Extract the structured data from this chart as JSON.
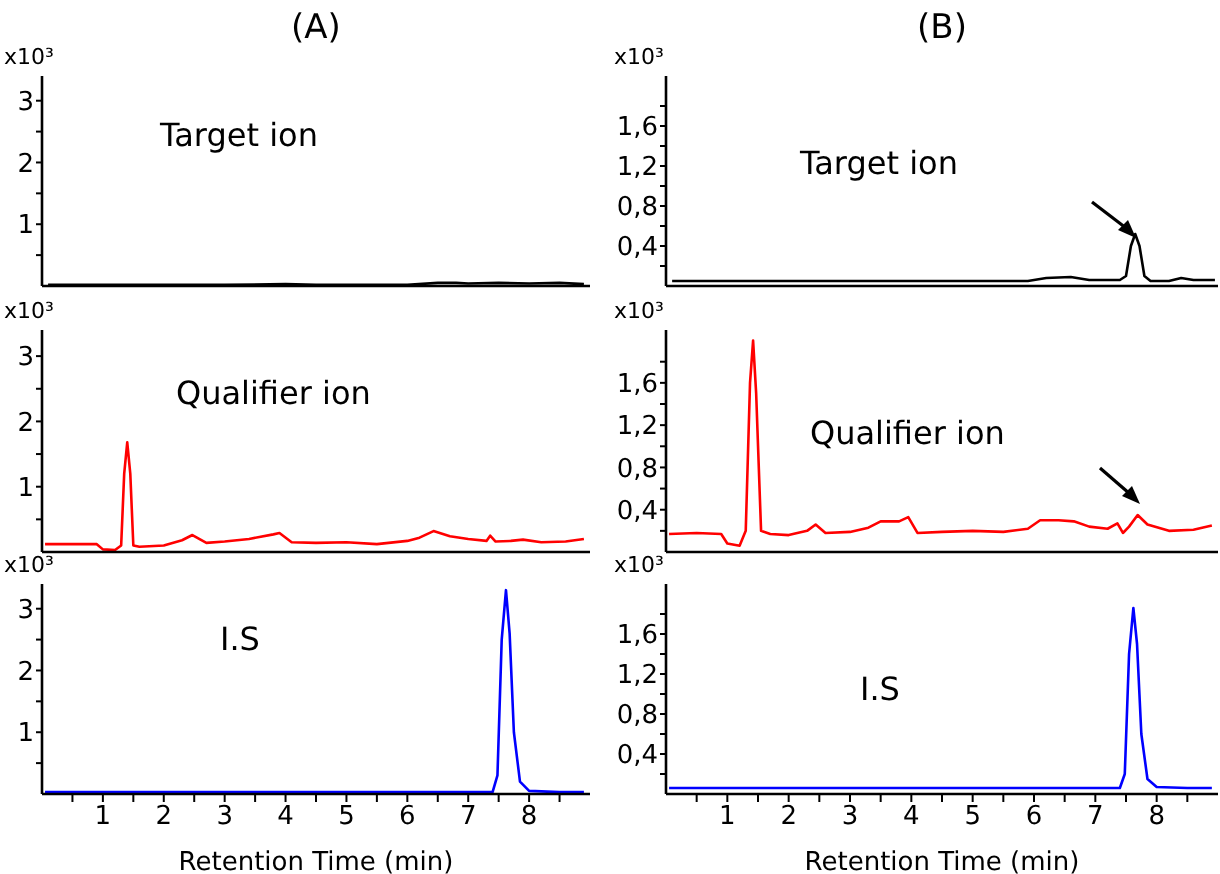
{
  "chart_data": [
    {
      "type": "line",
      "title": "(A)",
      "ylabel": "x10³",
      "annotations": [
        "Target ion"
      ],
      "xlim": [
        0,
        9
      ],
      "ylim": [
        0,
        3.4
      ],
      "yticks": [
        {
          "value": 0.5,
          "label": null
        },
        1,
        {
          "value": 1.5,
          "label": null
        },
        2,
        {
          "value": 2.5,
          "label": null
        },
        3
      ],
      "tick_labels": "y",
      "grid": false,
      "legend": false,
      "marker": "none",
      "line_style": "solid",
      "series": [
        {
          "color": "#000000",
          "x": [
            0.1,
            1,
            2,
            3,
            4,
            4.5,
            5,
            6,
            6.5,
            6.8,
            7,
            7.5,
            8,
            8.5,
            8.9
          ],
          "values": [
            0.02,
            0.02,
            0.02,
            0.02,
            0.03,
            0.02,
            0.02,
            0.02,
            0.05,
            0.05,
            0.04,
            0.05,
            0.04,
            0.05,
            0.03
          ]
        }
      ]
    },
    {
      "type": "line",
      "title": "(B)",
      "ylabel": "x10³",
      "annotations": [
        "Target ion"
      ],
      "xlim": [
        0,
        9
      ],
      "ylim": [
        0,
        2.1
      ],
      "yticks": [
        {
          "value": 0.2,
          "label": null
        },
        {
          "value": 0.4,
          "label": "0,4"
        },
        {
          "value": 0.6,
          "label": null
        },
        {
          "value": 0.8,
          "label": "0,8"
        },
        {
          "value": 1.0,
          "label": null
        },
        {
          "value": 1.2,
          "label": "1,2"
        },
        {
          "value": 1.4,
          "label": null
        },
        {
          "value": 1.6,
          "label": "1,6"
        },
        {
          "value": 1.8,
          "label": null
        }
      ],
      "tick_labels": "y",
      "grid": false,
      "legend": false,
      "marker": "none",
      "line_style": "solid",
      "series": [
        {
          "color": "#000000",
          "x": [
            0.1,
            1,
            2,
            3,
            4,
            5,
            5.9,
            6.2,
            6.6,
            6.9,
            7.2,
            7.4,
            7.5,
            7.58,
            7.65,
            7.72,
            7.8,
            7.9,
            8.2,
            8.4,
            8.6,
            8.95
          ],
          "values": [
            0.05,
            0.05,
            0.05,
            0.05,
            0.05,
            0.05,
            0.05,
            0.08,
            0.09,
            0.06,
            0.06,
            0.06,
            0.1,
            0.4,
            0.52,
            0.4,
            0.1,
            0.05,
            0.05,
            0.08,
            0.06,
            0.06
          ]
        }
      ]
    },
    {
      "type": "line",
      "ylabel": "x10³",
      "annotations": [
        "Qualifier ion"
      ],
      "xlim": [
        0,
        9
      ],
      "ylim": [
        0,
        3.4
      ],
      "yticks": [
        {
          "value": 0.5,
          "label": null
        },
        1,
        {
          "value": 1.5,
          "label": null
        },
        2,
        {
          "value": 2.5,
          "label": null
        },
        3
      ],
      "tick_labels": "y",
      "grid": false,
      "legend": false,
      "marker": "none",
      "line_style": "solid",
      "series": [
        {
          "color": "#ff0000",
          "x": [
            0.05,
            0.5,
            0.9,
            1.0,
            1.2,
            1.3,
            1.35,
            1.4,
            1.45,
            1.5,
            1.6,
            2.0,
            2.3,
            2.47,
            2.7,
            3.0,
            3.4,
            3.8,
            3.9,
            4.1,
            4.5,
            5.0,
            5.5,
            6.0,
            6.2,
            6.43,
            6.7,
            7.0,
            7.3,
            7.36,
            7.45,
            7.7,
            7.9,
            8.2,
            8.6,
            8.9
          ],
          "values": [
            0.12,
            0.12,
            0.12,
            0.04,
            0.03,
            0.1,
            1.2,
            1.68,
            1.2,
            0.1,
            0.08,
            0.1,
            0.18,
            0.26,
            0.14,
            0.16,
            0.2,
            0.27,
            0.29,
            0.15,
            0.14,
            0.15,
            0.12,
            0.17,
            0.22,
            0.32,
            0.24,
            0.2,
            0.17,
            0.25,
            0.16,
            0.17,
            0.19,
            0.15,
            0.16,
            0.2
          ]
        }
      ]
    },
    {
      "type": "line",
      "ylabel": "x10³",
      "annotations": [
        "Qualifier ion"
      ],
      "xlim": [
        0,
        9
      ],
      "ylim": [
        0,
        2.1
      ],
      "yticks": [
        {
          "value": 0.2,
          "label": null
        },
        {
          "value": 0.4,
          "label": "0,4"
        },
        {
          "value": 0.6,
          "label": null
        },
        {
          "value": 0.8,
          "label": "0,8"
        },
        {
          "value": 1.0,
          "label": null
        },
        {
          "value": 1.2,
          "label": "1,2"
        },
        {
          "value": 1.4,
          "label": null
        },
        {
          "value": 1.6,
          "label": "1,6"
        },
        {
          "value": 1.8,
          "label": null
        }
      ],
      "tick_labels": "y",
      "grid": false,
      "legend": false,
      "marker": "none",
      "line_style": "solid",
      "series": [
        {
          "color": "#ff0000",
          "x": [
            0.05,
            0.5,
            0.9,
            1.0,
            1.2,
            1.3,
            1.37,
            1.42,
            1.47,
            1.55,
            1.7,
            2.0,
            2.3,
            2.44,
            2.6,
            3.0,
            3.3,
            3.5,
            3.8,
            3.95,
            4.1,
            4.5,
            5.0,
            5.5,
            5.9,
            6.1,
            6.4,
            6.65,
            6.9,
            7.2,
            7.36,
            7.45,
            7.55,
            7.69,
            7.85,
            8.2,
            8.6,
            8.9
          ],
          "values": [
            0.17,
            0.18,
            0.17,
            0.08,
            0.06,
            0.2,
            1.6,
            2.0,
            1.5,
            0.2,
            0.17,
            0.16,
            0.2,
            0.26,
            0.18,
            0.19,
            0.23,
            0.29,
            0.29,
            0.33,
            0.18,
            0.19,
            0.2,
            0.19,
            0.22,
            0.3,
            0.3,
            0.29,
            0.24,
            0.22,
            0.27,
            0.18,
            0.24,
            0.35,
            0.26,
            0.2,
            0.21,
            0.25
          ]
        }
      ]
    },
    {
      "type": "line",
      "ylabel": "x10³",
      "xlabel": "Retention Time (min)",
      "annotations": [
        "I.S"
      ],
      "xlim": [
        0,
        9
      ],
      "ylim": [
        0,
        3.4
      ],
      "xticks": [
        {
          "value": 0.5,
          "label": null
        },
        1,
        {
          "value": 1.5,
          "label": null
        },
        2,
        {
          "value": 2.5,
          "label": null
        },
        3,
        {
          "value": 3.5,
          "label": null
        },
        4,
        {
          "value": 4.5,
          "label": null
        },
        5,
        {
          "value": 5.5,
          "label": null
        },
        6,
        {
          "value": 6.5,
          "label": null
        },
        7,
        {
          "value": 7.5,
          "label": null
        },
        8,
        {
          "value": 8.5,
          "label": null
        }
      ],
      "yticks": [
        {
          "value": 0.5,
          "label": null
        },
        1,
        {
          "value": 1.5,
          "label": null
        },
        2,
        {
          "value": 2.5,
          "label": null
        },
        3
      ],
      "grid": false,
      "legend": false,
      "marker": "none",
      "line_style": "solid",
      "series": [
        {
          "color": "#0000ff",
          "x": [
            0.05,
            2,
            4,
            6,
            7,
            7.4,
            7.48,
            7.55,
            7.62,
            7.68,
            7.75,
            7.85,
            8,
            8.5,
            8.9
          ],
          "values": [
            0.03,
            0.03,
            0.03,
            0.03,
            0.03,
            0.03,
            0.3,
            2.5,
            3.3,
            2.6,
            1.0,
            0.2,
            0.05,
            0.03,
            0.03
          ]
        }
      ]
    },
    {
      "type": "line",
      "ylabel": "x10³",
      "xlabel": "Retention Time (min)",
      "annotations": [
        "I.S"
      ],
      "xlim": [
        0,
        9
      ],
      "ylim": [
        0,
        2.1
      ],
      "xticks": [
        {
          "value": 0.5,
          "label": null
        },
        1,
        {
          "value": 1.5,
          "label": null
        },
        2,
        {
          "value": 2.5,
          "label": null
        },
        3,
        {
          "value": 3.5,
          "label": null
        },
        4,
        {
          "value": 4.5,
          "label": null
        },
        5,
        {
          "value": 5.5,
          "label": null
        },
        6,
        {
          "value": 6.5,
          "label": null
        },
        7,
        {
          "value": 7.5,
          "label": null
        },
        8,
        {
          "value": 8.5,
          "label": null
        }
      ],
      "yticks": [
        {
          "value": 0.2,
          "label": null
        },
        {
          "value": 0.4,
          "label": "0,4"
        },
        {
          "value": 0.6,
          "label": null
        },
        {
          "value": 0.8,
          "label": "0,8"
        },
        {
          "value": 1.0,
          "label": null
        },
        {
          "value": 1.2,
          "label": "1,2"
        },
        {
          "value": 1.4,
          "label": null
        },
        {
          "value": 1.6,
          "label": "1,6"
        },
        {
          "value": 1.8,
          "label": null
        }
      ],
      "grid": false,
      "legend": false,
      "marker": "none",
      "line_style": "solid",
      "series": [
        {
          "color": "#0000ff",
          "x": [
            0.05,
            2,
            4,
            6,
            7,
            7.4,
            7.48,
            7.55,
            7.62,
            7.68,
            7.75,
            7.85,
            8,
            8.5,
            8.9
          ],
          "values": [
            0.06,
            0.06,
            0.06,
            0.06,
            0.06,
            0.06,
            0.2,
            1.4,
            1.86,
            1.5,
            0.6,
            0.15,
            0.07,
            0.06,
            0.06
          ]
        }
      ]
    }
  ]
}
